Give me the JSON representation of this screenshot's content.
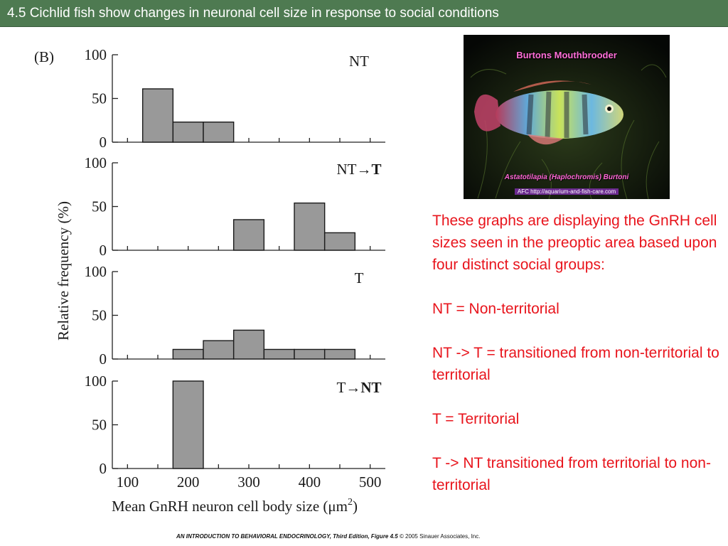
{
  "title": "4.5  Cichlid fish show changes in neuronal cell size in response to social conditions",
  "chart_data": {
    "type": "bar",
    "panel_tag": "(B)",
    "xlabel": "Mean GnRH neuron cell body size (μm",
    "xlabel_sup": "2",
    "xlabel_close": ")",
    "ylabel": "Relative frequency (%)",
    "x_ticks": [
      100,
      200,
      300,
      400,
      500
    ],
    "y_ticks": [
      0,
      50,
      100
    ],
    "xlim": [
      75,
      525
    ],
    "ylim": [
      0,
      100
    ],
    "bin_width": 50,
    "bar_color": "#999999",
    "panels": [
      {
        "label": "NT",
        "label_bold_part": "",
        "bins": [
          {
            "x": 150,
            "value": 61
          },
          {
            "x": 200,
            "value": 23
          },
          {
            "x": 250,
            "value": 23
          }
        ]
      },
      {
        "label": "NT→",
        "label_bold_part": "T",
        "bins": [
          {
            "x": 300,
            "value": 35
          },
          {
            "x": 400,
            "value": 54
          },
          {
            "x": 450,
            "value": 20
          }
        ]
      },
      {
        "label": "T",
        "label_bold_part": "",
        "bins": [
          {
            "x": 200,
            "value": 11
          },
          {
            "x": 250,
            "value": 21
          },
          {
            "x": 300,
            "value": 33
          },
          {
            "x": 350,
            "value": 11
          },
          {
            "x": 400,
            "value": 11
          },
          {
            "x": 450,
            "value": 11
          }
        ]
      },
      {
        "label": "T→",
        "label_bold_part": "NT",
        "bins": [
          {
            "x": 200,
            "value": 100
          }
        ]
      }
    ]
  },
  "photo": {
    "title": "Burtons Mouthbrooder",
    "species": "Astatotilapia (Haplochromis) Burtoni",
    "credit": "AFC http://aquarium-and-fish-care.com"
  },
  "description": [
    "These graphs are displaying the GnRH cell sizes seen in the preoptic area based upon four distinct social groups:",
    "NT = Non-territorial",
    "NT -> T = transitioned from non-territorial to territorial",
    "T = Territorial",
    "T -> NT transitioned from territorial to non-territorial"
  ],
  "footer": {
    "bold": "AN INTRODUCTION TO BEHAVIORAL ENDOCRINOLOGY, Third Edition, Figure 4.5",
    "normal": " © 2005 Sinauer Associates, Inc."
  }
}
